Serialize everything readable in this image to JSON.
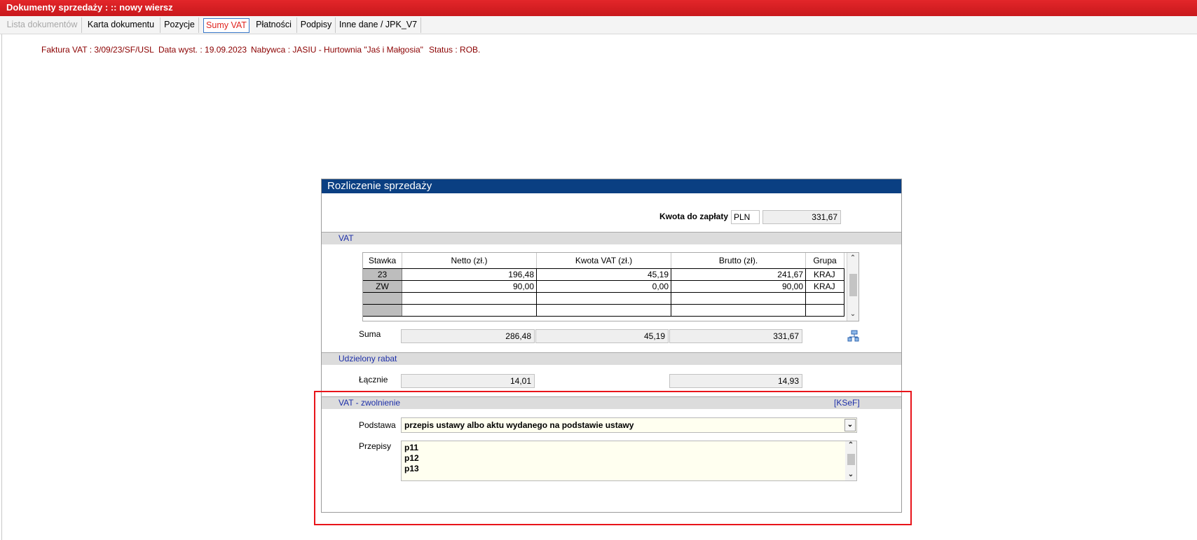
{
  "window": {
    "title": "Dokumenty sprzedaży : :: nowy wiersz"
  },
  "tabs": [
    {
      "label": "Lista dokumentów",
      "state": "disabled"
    },
    {
      "label": "Karta dokumentu",
      "state": "normal"
    },
    {
      "label": "Pozycje",
      "state": "normal"
    },
    {
      "label": "Sumy VAT",
      "state": "active"
    },
    {
      "label": "Płatności",
      "state": "normal"
    },
    {
      "label": "Podpisy",
      "state": "normal"
    },
    {
      "label": "Inne dane / JPK_V7",
      "state": "normal"
    }
  ],
  "doc_info": {
    "invoice": "Faktura VAT : 3/09/23/SF/USL",
    "date": "Data wyst. : 19.09.2023",
    "buyer": "Nabywca : JASIU - Hurtownia \"Jaś i Małgosia\"",
    "status": "Status : ROB."
  },
  "panel": {
    "title": "Rozliczenie sprzedaży",
    "amount_label": "Kwota do zapłaty",
    "currency": "PLN",
    "amount_value": "331,67",
    "vat_section": {
      "title": "VAT",
      "columns": [
        "Stawka",
        "Netto (zł.)",
        "Kwota VAT (zł.)",
        "Brutto (zł).",
        "Grupa"
      ],
      "rows": [
        {
          "rate": "23",
          "netto": "196,48",
          "vat": "45,19",
          "brutto": "241,67",
          "group": "KRAJ"
        },
        {
          "rate": "ZW",
          "netto": "90,00",
          "vat": "0,00",
          "brutto": "90,00",
          "group": "KRAJ"
        },
        {
          "rate": "",
          "netto": "",
          "vat": "",
          "brutto": "",
          "group": ""
        },
        {
          "rate": "",
          "netto": "",
          "vat": "",
          "brutto": "",
          "group": ""
        }
      ],
      "sum_label": "Suma",
      "sum_netto": "286,48",
      "sum_vat": "45,19",
      "sum_brutto": "331,67"
    },
    "discount_section": {
      "title": "Udzielony rabat",
      "total_label": "Łącznie",
      "value1": "14,01",
      "value2": "14,93"
    },
    "exemption_section": {
      "title": "VAT - zwolnienie",
      "ksef_link": "[KSeF]",
      "basis_label": "Podstawa",
      "basis_value": "przepis ustawy albo aktu wydanego na podstawie ustawy",
      "provisions_label": "Przepisy",
      "provisions": [
        "p11",
        "p12",
        "p13"
      ]
    }
  },
  "colors": {
    "title_bar": "#d51e22",
    "panel_header": "#0a3f82",
    "highlight_box": "#e8141a",
    "info_text": "#8b0000"
  }
}
